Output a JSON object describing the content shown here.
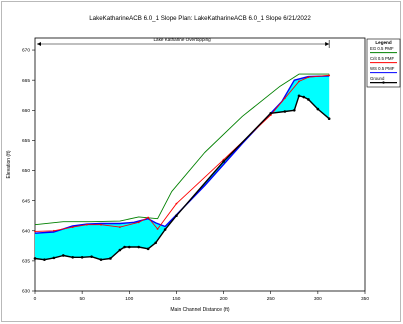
{
  "chart_data": {
    "type": "area",
    "title": "LakeKatharineACB 6.0_1 Slope     Plan: LakeKatharineACB 6.0_1 Slope     6/21/2022",
    "annotation": "Lake Katharine Overtopping",
    "xlabel": "Main Channel Distance (ft)",
    "ylabel": "Elevation (ft)",
    "xlim": [
      0,
      350
    ],
    "ylim": [
      630,
      672
    ],
    "xticks": [
      "0",
      "50",
      "100",
      "150",
      "200",
      "250",
      "300",
      "350"
    ],
    "yticks": [
      "630",
      "635",
      "640",
      "645",
      "650",
      "655",
      "660",
      "665",
      "670"
    ],
    "legend_title": "Legend",
    "legend_placement": "top-right",
    "grid": false,
    "colors": {
      "eg": "#008000",
      "crit": "#ff0000",
      "ws": "#0000ff",
      "water": "#00ffff",
      "ground": "#000000"
    },
    "series": [
      {
        "name": "EG  0.5 PMF",
        "x": [
          0,
          30,
          60,
          90,
          110,
          130,
          145,
          180,
          220,
          260,
          280,
          312
        ],
        "y": [
          641.0,
          641.5,
          641.5,
          641.6,
          642.3,
          642.0,
          646.5,
          653.0,
          659.0,
          664.0,
          666.0,
          666.0
        ]
      },
      {
        "name": "Crit  0.5 PMF",
        "x": [
          0,
          20,
          40,
          55,
          70,
          90,
          110,
          120,
          130,
          150,
          200,
          250,
          265,
          280,
          290,
          312
        ],
        "y": [
          639.9,
          640.0,
          640.6,
          641.0,
          641.0,
          640.6,
          641.4,
          642.2,
          640.3,
          644.5,
          651.8,
          659.2,
          662.0,
          664.8,
          665.5,
          665.8
        ]
      },
      {
        "name": "WS  0.5 PMF",
        "x": [
          0,
          20,
          40,
          55,
          70,
          90,
          105,
          120,
          128,
          138,
          180,
          220,
          262,
          275,
          290,
          312
        ],
        "y": [
          639.6,
          639.8,
          640.8,
          641.1,
          641.2,
          641.2,
          641.4,
          642.0,
          641.3,
          640.7,
          647.5,
          654.5,
          661.5,
          665.0,
          665.6,
          665.7
        ]
      },
      {
        "name": "Ground",
        "x": [
          0,
          10,
          20,
          30,
          40,
          50,
          60,
          70,
          80,
          90,
          95,
          100,
          110,
          120,
          128,
          138,
          150,
          200,
          250,
          265,
          275,
          280,
          285,
          290,
          300,
          312
        ],
        "y": [
          635.4,
          635.2,
          635.5,
          635.9,
          635.6,
          635.6,
          635.7,
          635.2,
          635.4,
          636.8,
          637.3,
          637.3,
          637.3,
          637.0,
          638.0,
          640.2,
          642.5,
          651.5,
          659.5,
          659.8,
          660.0,
          662.4,
          662.2,
          661.8,
          660.2,
          658.6
        ]
      }
    ]
  }
}
